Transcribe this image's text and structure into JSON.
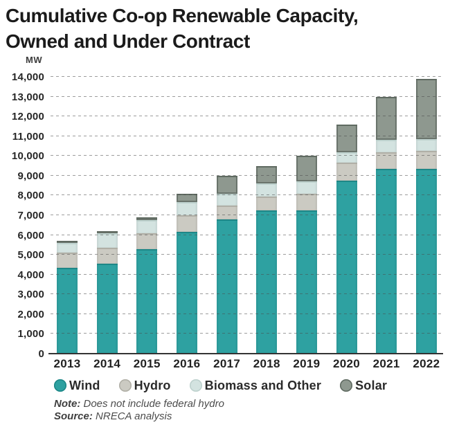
{
  "title": {
    "line1": "Cumulative Co-op Renewable Capacity,",
    "line2": "Owned and Under Contract"
  },
  "chart_data": {
    "type": "bar",
    "stacked": true,
    "title": "Cumulative Co-op Renewable Capacity, Owned and Under Contract",
    "ylabel": "MW",
    "xlabel": "",
    "categories": [
      "2013",
      "2014",
      "2015",
      "2016",
      "2017",
      "2018",
      "2019",
      "2020",
      "2021",
      "2022"
    ],
    "series": [
      {
        "name": "Wind",
        "color": "#2EA1A1",
        "color_top": "#1D8787",
        "values": [
          4350,
          4550,
          5300,
          6150,
          6800,
          7250,
          7250,
          8750,
          9350,
          9350
        ]
      },
      {
        "name": "Hydro",
        "color": "#CBCAC2",
        "color_top": "#B0AFA6",
        "values": [
          750,
          800,
          800,
          850,
          700,
          700,
          850,
          900,
          850,
          900
        ]
      },
      {
        "name": "Biomass and Other",
        "color": "#D3E3E0",
        "color_top": "#BDD1CD",
        "values": [
          500,
          750,
          650,
          650,
          600,
          650,
          600,
          550,
          600,
          600
        ]
      },
      {
        "name": "Solar",
        "color": "#8E988F",
        "color_top": "#5F6A61",
        "border": "#6A746C",
        "values": [
          100,
          100,
          150,
          450,
          900,
          900,
          1300,
          1400,
          2200,
          3050
        ]
      }
    ],
    "totals": [
      5700,
      6200,
      6900,
      8100,
      9000,
      9500,
      10000,
      11600,
      13000,
      13900
    ],
    "ylim": [
      0,
      14000
    ],
    "ytick_step": 1000,
    "grid": "horizontal-dashed",
    "legend_position": "bottom"
  },
  "notes": {
    "note_label": "Note:",
    "note_text": " Does not include federal hydro",
    "source_label": "Source:",
    "source_text": " NRECA analysis"
  }
}
